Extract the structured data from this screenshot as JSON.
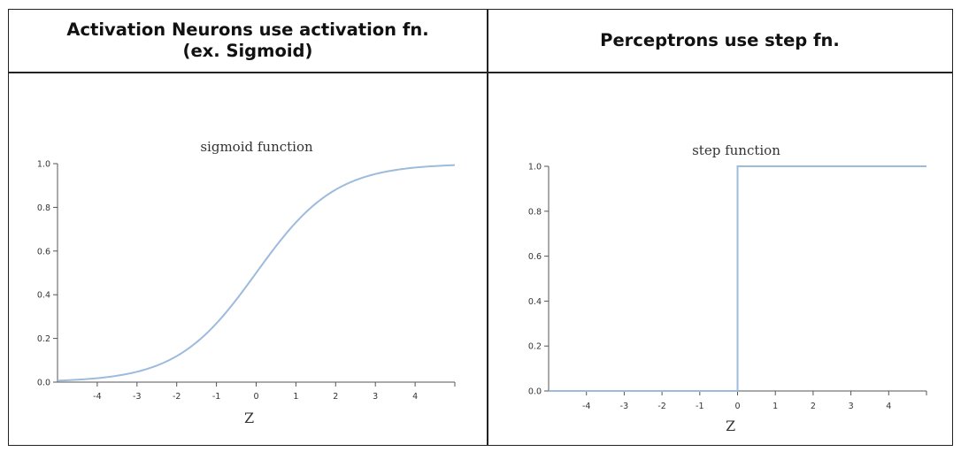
{
  "headers": {
    "left": "Activation Neurons use activation fn.\n(ex. Sigmoid)",
    "right": "Perceptrons use step fn."
  },
  "colors": {
    "line": "#9dbbdc",
    "axis": "#555555",
    "border": "#222222"
  },
  "chart_data": [
    {
      "type": "line",
      "title": "sigmoid function",
      "xlabel": "Z",
      "ylabel": "",
      "xlim": [
        -5,
        5
      ],
      "ylim": [
        0,
        1
      ],
      "xticks": [
        -4,
        -3,
        -2,
        -1,
        0,
        1,
        2,
        3,
        4
      ],
      "yticks": [
        0.0,
        0.2,
        0.4,
        0.6,
        0.8,
        1.0
      ],
      "xtick_labels": [
        "-4",
        "-3",
        "-2",
        "-1",
        "0",
        "1",
        "2",
        "3",
        "4"
      ],
      "ytick_labels": [
        "0.0",
        "0.2",
        "0.4",
        "0.6",
        "0.8",
        "1.0"
      ],
      "grid": false,
      "series": [
        {
          "x": [
            -5,
            -4.5,
            -4,
            -3.5,
            -3,
            -2.5,
            -2,
            -1.5,
            -1,
            -0.5,
            0,
            0.5,
            1,
            1.5,
            2,
            2.5,
            3,
            3.5,
            4,
            4.5,
            5
          ],
          "y": [
            0.007,
            0.011,
            0.018,
            0.029,
            0.047,
            0.076,
            0.119,
            0.182,
            0.269,
            0.378,
            0.5,
            0.622,
            0.731,
            0.818,
            0.881,
            0.924,
            0.953,
            0.971,
            0.982,
            0.989,
            0.993
          ]
        }
      ]
    },
    {
      "type": "line",
      "title": "step function",
      "xlabel": "Z",
      "ylabel": "",
      "xlim": [
        -5,
        5
      ],
      "ylim": [
        0,
        1
      ],
      "xticks": [
        -4,
        -3,
        -2,
        -1,
        0,
        1,
        2,
        3,
        4
      ],
      "yticks": [
        0.0,
        0.2,
        0.4,
        0.6,
        0.8,
        1.0
      ],
      "xtick_labels": [
        "-4",
        "-3",
        "-2",
        "-1",
        "0",
        "1",
        "2",
        "3",
        "4"
      ],
      "ytick_labels": [
        "0.0",
        "0.2",
        "0.4",
        "0.6",
        "0.8",
        "1.0"
      ],
      "grid": false,
      "series": [
        {
          "x": [
            -5,
            0,
            0,
            5
          ],
          "y": [
            0,
            0,
            1,
            1
          ]
        }
      ]
    }
  ]
}
